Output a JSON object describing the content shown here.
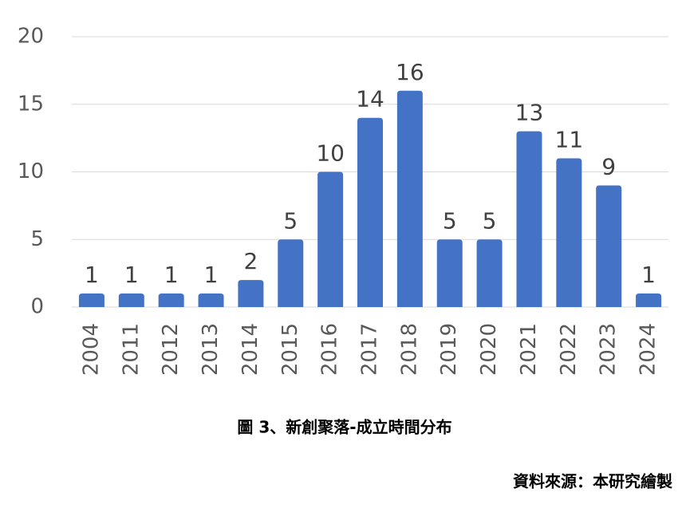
{
  "chart_data": {
    "type": "bar",
    "categories": [
      "2004",
      "2011",
      "2012",
      "2013",
      "2014",
      "2015",
      "2016",
      "2017",
      "2018",
      "2019",
      "2020",
      "2021",
      "2022",
      "2023",
      "2024"
    ],
    "values": [
      1,
      1,
      1,
      1,
      2,
      5,
      10,
      14,
      16,
      5,
      5,
      13,
      11,
      9,
      1
    ],
    "color": "#4472c4",
    "ylim": [
      0,
      20
    ],
    "yticks": [
      0,
      5,
      10,
      15,
      20
    ],
    "grid": true,
    "caption": "圖 3、新創聚落-成立時間分布",
    "source": "資料來源：本研究繪製"
  }
}
